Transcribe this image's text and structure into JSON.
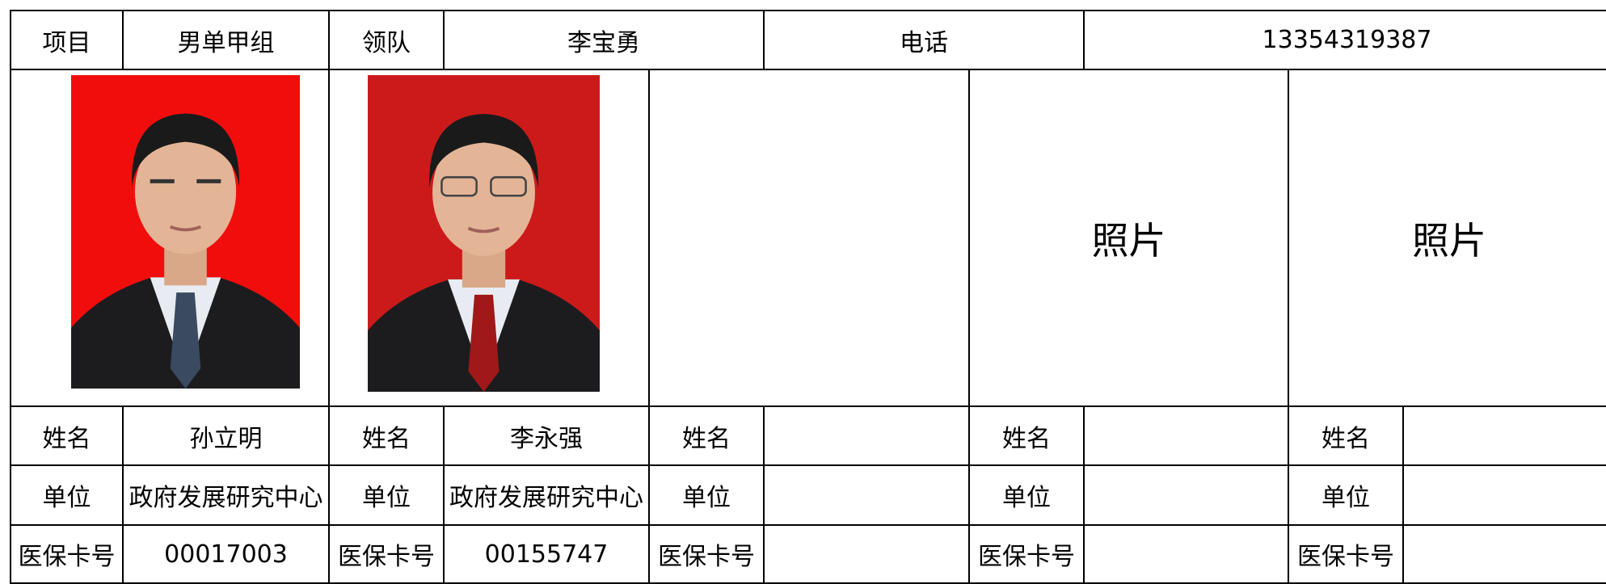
{
  "header": {
    "project_label": "项目",
    "project": "男单甲组",
    "leader_label": "领队",
    "leader": "李宝勇",
    "phone_label": "电话",
    "phone": "13354319387"
  },
  "photo_placeholders": [
    "照片",
    "照片"
  ],
  "players": [
    {
      "name_label": "姓名",
      "name": "孙立明",
      "unit_label": "单位",
      "unit": "政府发展研究中心",
      "card_label": "医保卡号",
      "card": "00017003"
    },
    {
      "name_label": "姓名",
      "name": "李永强",
      "unit_label": "单位",
      "unit": "政府发展研究中心",
      "card_label": "医保卡号",
      "card": "00155747"
    },
    {
      "name_label": "姓名",
      "unit_label": "单位",
      "card_label": "医保卡号"
    },
    {
      "name_label": "姓名",
      "unit_label": "单位",
      "card_label": "医保卡号"
    },
    {
      "name_label": "姓名",
      "unit_label": "单位",
      "card_label": "医保卡号"
    }
  ]
}
